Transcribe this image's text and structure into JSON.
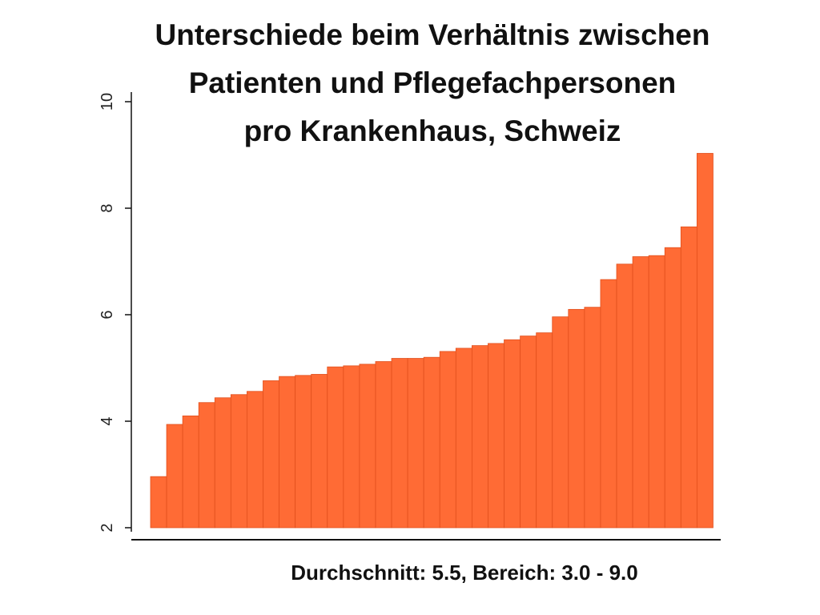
{
  "chart_data": {
    "type": "bar",
    "title": [
      "Unterschiede beim Verhältnis zwischen",
      "Patienten und Pflegefachpersonen",
      "pro Krankenhaus, Schweiz"
    ],
    "caption": "Durchschnitt: 5.5, Bereich: 3.0 - 9.0",
    "xlabel": "",
    "ylabel": "",
    "ylim": [
      2,
      10
    ],
    "yticks": [
      2,
      4,
      6,
      8,
      10
    ],
    "ytick_labels": [
      "2",
      "4",
      "6",
      "8",
      "10"
    ],
    "grid": false,
    "legend": "none",
    "bar_color": "#ff6b35",
    "values": [
      2.96,
      3.94,
      4.1,
      4.35,
      4.44,
      4.5,
      4.56,
      4.76,
      4.84,
      4.86,
      4.88,
      5.02,
      5.04,
      5.07,
      5.12,
      5.18,
      5.18,
      5.2,
      5.31,
      5.37,
      5.42,
      5.46,
      5.53,
      5.6,
      5.66,
      5.96,
      6.1,
      6.14,
      6.66,
      6.95,
      7.09,
      7.11,
      7.26,
      7.65,
      9.03
    ]
  }
}
